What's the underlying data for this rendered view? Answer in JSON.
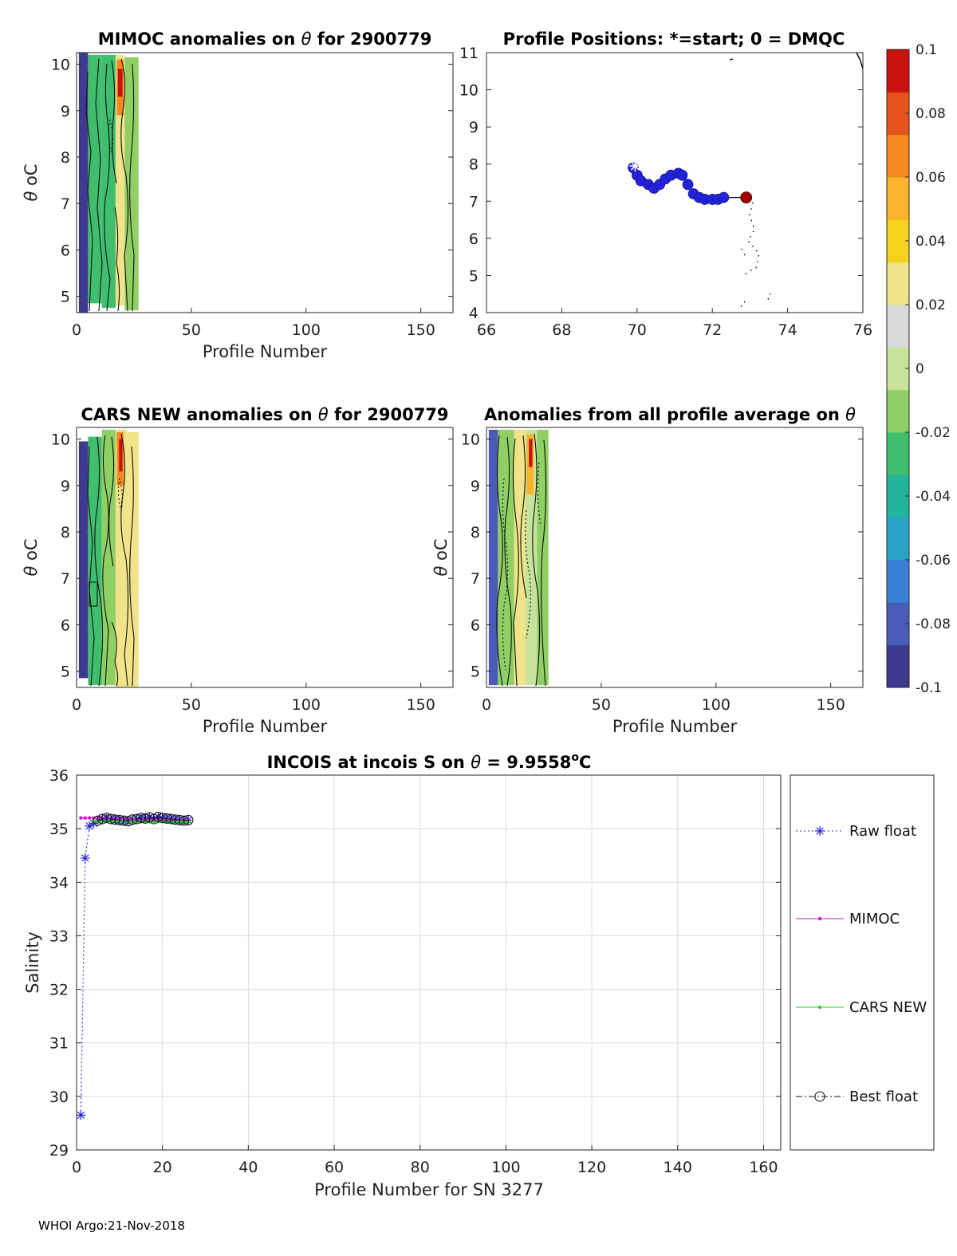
{
  "footer": "WHOI Argo:21-Nov-2018",
  "colormap": [
    "#3e3a8f",
    "#4a5bb8",
    "#3a7fd6",
    "#2aa3c9",
    "#21b59c",
    "#3fbf6e",
    "#8fcf63",
    "#c7e39b",
    "#d9d9d9",
    "#f0e38a",
    "#f5d21d",
    "#f8b42a",
    "#f5891f",
    "#e8531d",
    "#c9110d"
  ],
  "colorbar": {
    "ticks": [
      "0.1",
      "0.08",
      "0.06",
      "0.04",
      "0.02",
      "0",
      "-0.02",
      "-0.04",
      "-0.06",
      "-0.08",
      "-0.1"
    ],
    "range": [
      -0.1,
      0.1
    ]
  },
  "chart_data": [
    {
      "id": "mimoc",
      "type": "heatmap",
      "title_main": "MIMOC anomalies on",
      "title_theta": "θ",
      "title_rest": " for 2900779",
      "xlabel": "Profile Number",
      "ylabel_theta": "θ",
      "ylabel_unit": "oC",
      "xlim": [
        0,
        164
      ],
      "ylim": [
        4.65,
        10.25
      ],
      "xticks": [
        0,
        50,
        100,
        150
      ],
      "yticks": [
        5,
        6,
        7,
        8,
        9,
        10
      ],
      "columns": [
        {
          "x0": 1,
          "x1": 5,
          "y0": 4.65,
          "y1": 10.25,
          "value": -0.09
        },
        {
          "x0": 5,
          "x1": 11,
          "y0": 4.85,
          "y1": 10.2,
          "value": -0.025
        },
        {
          "x0": 11,
          "x1": 17,
          "y0": 4.75,
          "y1": 10.2,
          "value": -0.02
        },
        {
          "x0": 17,
          "x1": 21,
          "y0": 4.8,
          "y1": 10.2,
          "value": 0.03
        },
        {
          "x0": 21,
          "x1": 27,
          "y0": 4.7,
          "y1": 10.15,
          "value": -0.01
        }
      ],
      "hotspots": [
        {
          "x0": 17.5,
          "x1": 20.5,
          "y0": 8.9,
          "y1": 10.1,
          "value": 0.07
        },
        {
          "x0": 18,
          "x1": 20,
          "y0": 9.3,
          "y1": 9.9,
          "value": 0.09
        }
      ]
    },
    {
      "id": "positions",
      "type": "line",
      "title_main": "Profile Positions: *=start; 0 = DMQC",
      "xlim": [
        66,
        76
      ],
      "ylim": [
        4,
        11
      ],
      "xticks": [
        66,
        68,
        70,
        72,
        74,
        76
      ],
      "yticks": [
        4,
        5,
        6,
        7,
        8,
        9,
        10,
        11
      ],
      "track_lon": [
        69.9,
        70.0,
        70.1,
        70.3,
        70.45,
        70.6,
        70.75,
        70.9,
        71.1,
        71.2,
        71.35,
        71.5,
        71.65,
        71.8,
        72.0,
        72.15,
        72.3
      ],
      "track_lat": [
        7.9,
        7.7,
        7.55,
        7.45,
        7.35,
        7.45,
        7.6,
        7.7,
        7.75,
        7.7,
        7.45,
        7.2,
        7.1,
        7.05,
        7.05,
        7.05,
        7.1
      ],
      "start": [
        69.95,
        7.95
      ],
      "dmqc": [
        72.9,
        7.1
      ]
    },
    {
      "id": "cars",
      "type": "heatmap",
      "title_main": "CARS NEW anomalies on",
      "title_theta": "θ",
      "title_rest": " for 2900779",
      "xlabel": "Profile Number",
      "ylabel_theta": "θ",
      "ylabel_unit": "oC",
      "xlim": [
        0,
        164
      ],
      "ylim": [
        4.65,
        10.25
      ],
      "xticks": [
        0,
        50,
        100,
        150
      ],
      "yticks": [
        5,
        6,
        7,
        8,
        9,
        10
      ],
      "columns": [
        {
          "x0": 1,
          "x1": 5,
          "y0": 4.85,
          "y1": 9.95,
          "value": -0.09
        },
        {
          "x0": 5,
          "x1": 11,
          "y0": 4.7,
          "y1": 10.05,
          "value": -0.02
        },
        {
          "x0": 11,
          "x1": 17,
          "y0": 4.7,
          "y1": 10.2,
          "value": -0.015
        },
        {
          "x0": 17,
          "x1": 22,
          "y0": 4.65,
          "y1": 10.2,
          "value": 0.03
        },
        {
          "x0": 22,
          "x1": 27,
          "y0": 4.65,
          "y1": 10.15,
          "value": 0.025
        }
      ],
      "hotspots": [
        {
          "x0": 17.5,
          "x1": 20.5,
          "y0": 9.0,
          "y1": 10.15,
          "value": 0.07
        },
        {
          "x0": 18.5,
          "x1": 20,
          "y0": 9.3,
          "y1": 10.0,
          "value": 0.09
        }
      ]
    },
    {
      "id": "allavg",
      "type": "heatmap",
      "title_main": "Anomalies from all profile average on",
      "title_theta": "θ",
      "title_rest": "",
      "xlabel": "Profile Number",
      "ylabel_theta": "θ",
      "ylabel_unit": "oC",
      "xlim": [
        0,
        164
      ],
      "ylim": [
        4.65,
        10.25
      ],
      "xticks": [
        0,
        50,
        100,
        150
      ],
      "yticks": [
        5,
        6,
        7,
        8,
        9,
        10
      ],
      "columns": [
        {
          "x0": 1,
          "x1": 5,
          "y0": 4.7,
          "y1": 10.2,
          "value": -0.08
        },
        {
          "x0": 5,
          "x1": 12,
          "y0": 4.7,
          "y1": 10.2,
          "value": -0.01
        },
        {
          "x0": 12,
          "x1": 17,
          "y0": 4.7,
          "y1": 10.2,
          "value": 0.02
        },
        {
          "x0": 17,
          "x1": 22,
          "y0": 4.7,
          "y1": 10.2,
          "value": 0.0
        },
        {
          "x0": 22,
          "x1": 27,
          "y0": 4.7,
          "y1": 10.2,
          "value": -0.01
        }
      ],
      "hotspots": [
        {
          "x0": 17.5,
          "x1": 20.5,
          "y0": 8.8,
          "y1": 10.1,
          "value": 0.06
        },
        {
          "x0": 18.5,
          "x1": 20,
          "y0": 9.4,
          "y1": 10.0,
          "value": 0.09
        }
      ]
    },
    {
      "id": "salinity",
      "type": "line",
      "title_main": "INCOIS at incois S on",
      "title_theta": "θ",
      "title_rest": " = 9.9558",
      "title_sup": "o",
      "title_tail": "C",
      "xlabel": "Profile Number for SN 3277",
      "ylabel": "Salinity",
      "xlim": [
        0,
        164
      ],
      "ylim": [
        29,
        36
      ],
      "xticks": [
        0,
        20,
        40,
        60,
        80,
        100,
        120,
        140,
        160
      ],
      "yticks": [
        29,
        30,
        31,
        32,
        33,
        34,
        35,
        36
      ],
      "x": [
        1,
        2,
        3,
        4,
        5,
        6,
        7,
        8,
        9,
        10,
        11,
        12,
        13,
        14,
        15,
        16,
        17,
        18,
        19,
        20,
        21,
        22,
        23,
        24,
        25,
        26
      ],
      "series": [
        {
          "name": "Raw float",
          "color": "#2a2ae0",
          "values": [
            29.65,
            34.45,
            35.05,
            35.1,
            35.15,
            35.18,
            35.2,
            35.18,
            35.17,
            35.16,
            35.15,
            35.14,
            35.17,
            35.18,
            35.2,
            35.19,
            35.21,
            35.18,
            35.22,
            35.2,
            35.19,
            35.18,
            35.17,
            35.16,
            35.15,
            35.16
          ]
        },
        {
          "name": "MIMOC",
          "color": "#e010e0",
          "values": [
            35.2,
            35.2,
            35.2,
            35.2,
            35.2,
            35.19,
            35.19,
            35.19,
            35.19,
            35.18,
            35.18,
            35.18,
            35.18,
            35.18,
            35.18,
            35.18,
            35.18,
            35.18,
            35.17,
            35.17,
            35.17,
            35.17,
            35.17,
            35.16,
            35.16,
            35.16
          ]
        },
        {
          "name": "CARS NEW",
          "color": "#22dd22",
          "values": [
            null,
            null,
            null,
            35.14,
            35.14,
            35.14,
            35.14,
            35.14,
            35.14,
            35.14,
            35.14,
            35.13,
            35.13,
            35.13,
            35.13,
            35.13,
            35.13,
            35.13,
            35.13,
            35.13,
            35.13,
            35.13,
            35.13,
            35.13,
            35.12,
            35.12
          ]
        },
        {
          "name": "Best float",
          "color": "#111111",
          "values": [
            null,
            null,
            null,
            null,
            35.15,
            35.18,
            35.2,
            35.18,
            35.17,
            35.16,
            35.15,
            35.14,
            35.17,
            35.18,
            35.2,
            35.19,
            35.21,
            35.18,
            35.22,
            35.2,
            35.19,
            35.18,
            35.17,
            35.16,
            35.15,
            35.16
          ]
        }
      ]
    }
  ]
}
